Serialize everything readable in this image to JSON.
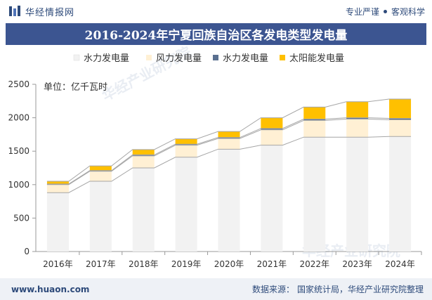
{
  "header": {
    "brand_name": "华经情报网",
    "slogan_left": "专业严谨",
    "slogan_right": "客观科学"
  },
  "title": "2016-2024年宁夏回族自治区各发电类型发电量",
  "footer": {
    "url": "www.huaon.com",
    "source_label": "数据来源：",
    "source_text": "国家统计局，华经产业研究院整理"
  },
  "watermark": "华经产业研究院",
  "colors": {
    "header_bg": "#3c5591",
    "brand": "#2d4a7a",
    "hydro": "#f2f2f2",
    "wind": "#fff0d4",
    "thermal": "#5a7090",
    "solar": "#ffc000",
    "trend_line": "#a6a6a6"
  },
  "chart_data": {
    "type": "bar",
    "stacked": true,
    "unit_label": "单位：亿千瓦时",
    "categories": [
      "2016年",
      "2017年",
      "2018年",
      "2019年",
      "2020年",
      "2021年",
      "2022年",
      "2023年",
      "2024年"
    ],
    "series": [
      {
        "name": "水力发电量",
        "values": [
          880,
          1050,
          1250,
          1410,
          1530,
          1590,
          1710,
          1710,
          1720
        ],
        "color": "#f2f2f2"
      },
      {
        "name": "风力发电量",
        "values": [
          120,
          150,
          180,
          180,
          160,
          230,
          250,
          270,
          250
        ],
        "color": "#fff0d4"
      },
      {
        "name": "水力发电量",
        "values": [
          10,
          10,
          15,
          15,
          15,
          20,
          20,
          20,
          20
        ],
        "color": "#5a7090"
      },
      {
        "name": "太阳能发电量",
        "values": [
          40,
          70,
          80,
          80,
          90,
          160,
          180,
          240,
          290
        ],
        "color": "#ffc000"
      }
    ],
    "yticks": [
      0,
      500,
      1000,
      1500,
      2000,
      2500
    ],
    "ylim": [
      0,
      2500
    ],
    "legend_position": "top",
    "grid": false,
    "trend_lines": true
  }
}
